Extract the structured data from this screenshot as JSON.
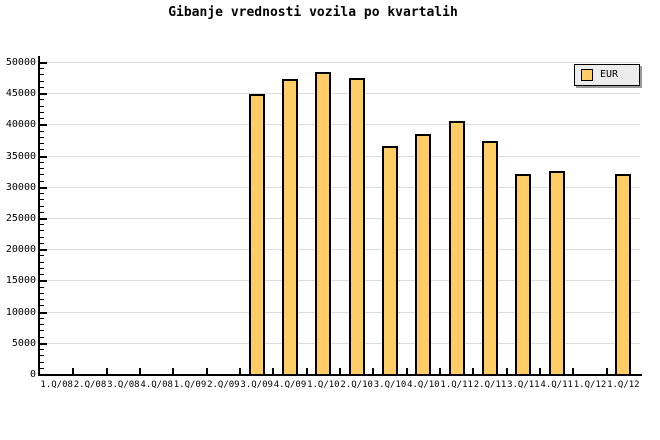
{
  "title": "Gibanje vrednosti vozila po kvartalih",
  "legend": {
    "label": "EUR"
  },
  "colors": {
    "background": "#FFFFFF",
    "bar_fill": "#FFCC66",
    "bar_border": "#000000",
    "gridline": "#DCDCDC",
    "axis": "#000000",
    "legend_bg": "#ECECEC",
    "legend_shadow": "#999999",
    "text": "#000000"
  },
  "chart_data": {
    "type": "bar",
    "title": "Gibanje vrednosti vozila po kvartalih",
    "categories": [
      "1.Q/08",
      "2.Q/08",
      "3.Q/08",
      "4.Q/08",
      "1.Q/09",
      "2.Q/09",
      "3.Q/09",
      "4.Q/09",
      "1.Q/10",
      "2.Q/10",
      "3.Q/10",
      "4.Q/10",
      "1.Q/11",
      "2.Q/11",
      "3.Q/11",
      "4.Q/11",
      "1.Q/12",
      "1.Q/12"
    ],
    "series": [
      {
        "name": "EUR",
        "values": [
          null,
          null,
          null,
          null,
          null,
          null,
          44800,
          47300,
          48400,
          47500,
          36500,
          38400,
          40600,
          37400,
          32000,
          32600,
          null,
          32000
        ]
      }
    ],
    "xlabel": "",
    "ylabel": "",
    "ylim": [
      0,
      50000
    ],
    "ytick_step": 5000,
    "y_minor_tick_step": 1000,
    "grid": true,
    "legend_entries": [
      "EUR"
    ],
    "legend_position": "top-right"
  }
}
